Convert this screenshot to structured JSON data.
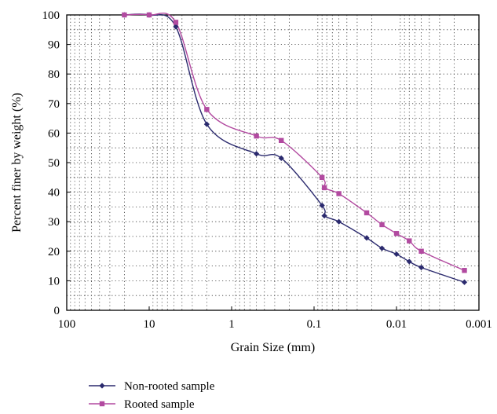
{
  "chart_data": {
    "type": "line",
    "title": "",
    "xlabel": "Grain Size (mm)",
    "ylabel": "Percent finer by weight (%)",
    "x_scale": "log",
    "x_reversed": true,
    "xlim": [
      100,
      0.001
    ],
    "ylim": [
      0,
      100
    ],
    "x_ticks": [
      100,
      10,
      1,
      0.1,
      0.01,
      0.001
    ],
    "x_tick_labels": [
      "100",
      "10",
      "1",
      "0.1",
      "0.01",
      "0.001"
    ],
    "y_ticks": [
      0,
      10,
      20,
      30,
      40,
      50,
      60,
      70,
      80,
      90,
      100
    ],
    "y_tick_labels": [
      "0",
      "10",
      "20",
      "30",
      "40",
      "50",
      "60",
      "70",
      "80",
      "90",
      "100"
    ],
    "grid": "dotted",
    "legend_position": "below",
    "series": [
      {
        "name": "Non-rooted sample",
        "color": "#2b2a6e",
        "marker": "diamond",
        "x": [
          20,
          10,
          4.75,
          2,
          0.5,
          0.25,
          0.08,
          0.075,
          0.05,
          0.023,
          0.015,
          0.01,
          0.007,
          0.005,
          0.0015
        ],
        "y": [
          100,
          100,
          96,
          63,
          53,
          51.5,
          35.5,
          32,
          30,
          24.5,
          21,
          19,
          16.5,
          14.5,
          9.5
        ]
      },
      {
        "name": "Rooted sample",
        "color": "#b24aa0",
        "marker": "square",
        "x": [
          20,
          10,
          4.75,
          2,
          0.5,
          0.25,
          0.08,
          0.075,
          0.05,
          0.023,
          0.015,
          0.01,
          0.007,
          0.005,
          0.0015
        ],
        "y": [
          100,
          100,
          97.5,
          68,
          59,
          57.5,
          45,
          41.5,
          39.5,
          33,
          29,
          26,
          23.5,
          20,
          13.5
        ]
      }
    ]
  }
}
